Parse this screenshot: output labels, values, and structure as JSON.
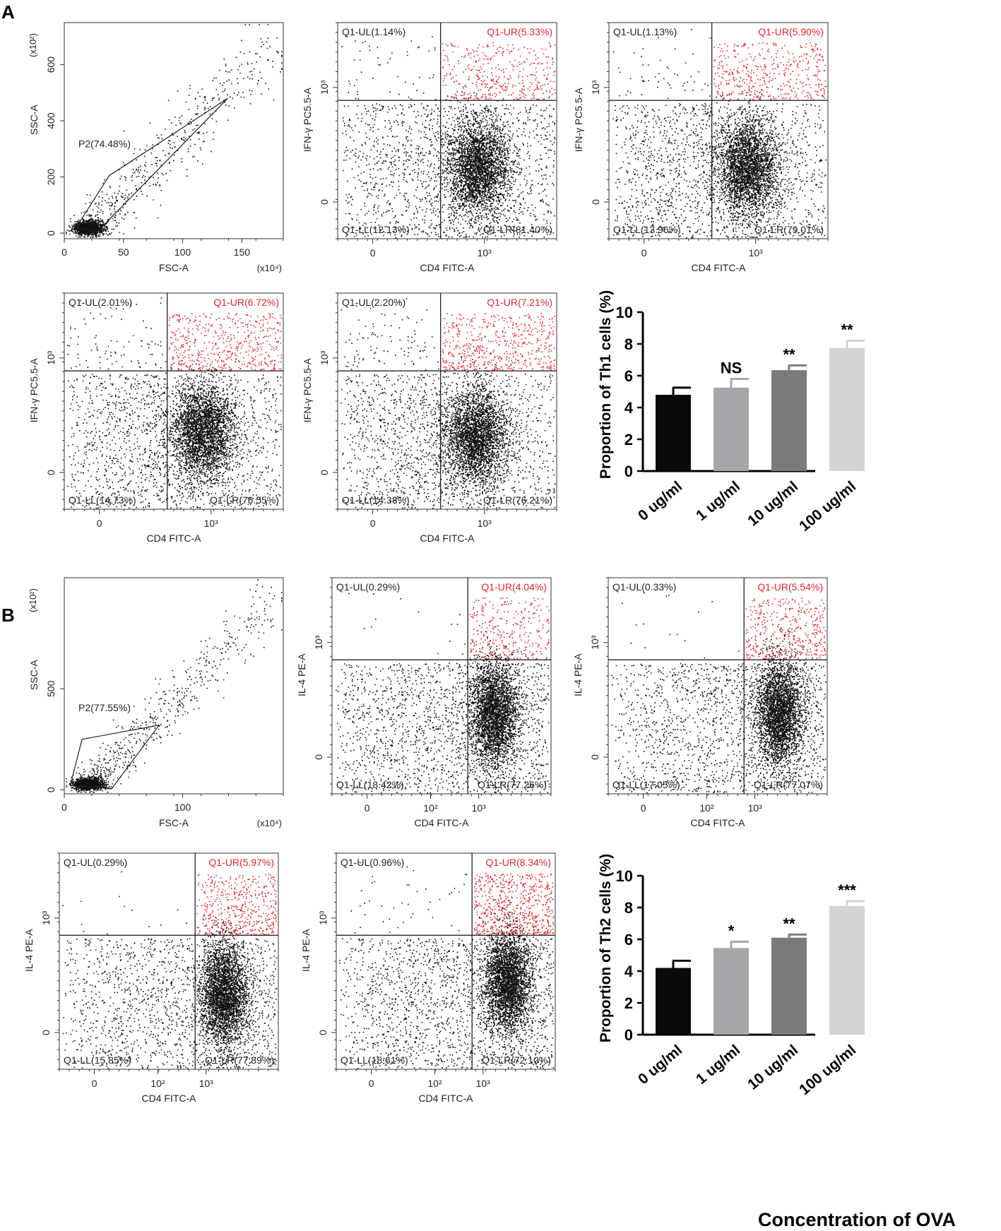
{
  "figure": {
    "panel_labels": [
      "A",
      "B"
    ],
    "common_xlabel": "Concentration of OVA"
  },
  "colors": {
    "black": "#111111",
    "red": "#e3262b",
    "bar0": "#0a0a0a",
    "bar1": "#a6a6aa",
    "bar2": "#7b7b7b",
    "bar3": "#d4d4d4"
  },
  "chart_data": [
    {
      "id": "A-gate",
      "type": "scatter",
      "kind": "gate",
      "xlabel": "FSC-A",
      "ylabel": "SSC-A",
      "x_exponent": "(x10⁴)",
      "y_exponent": "(x10²)",
      "xticks": [
        0,
        50,
        100,
        150
      ],
      "yticks": [
        0,
        200,
        400,
        600
      ],
      "xlim": [
        0,
        185
      ],
      "ylim": [
        -20,
        750
      ],
      "gate_label": "P2(74.48%)",
      "gate_polygon": [
        [
          28,
          5
        ],
        [
          138,
          480
        ],
        [
          38,
          205
        ],
        [
          10,
          20
        ]
      ],
      "cluster": {
        "cx": 20,
        "cy": 20,
        "sx": 6,
        "sy": 12,
        "n": 1400
      },
      "tail": {
        "x0": 20,
        "y0": 20,
        "x1": 180,
        "y1": 680,
        "n": 500
      }
    },
    {
      "id": "A-1",
      "type": "scatter",
      "kind": "quadrant",
      "xlabel": "CD4 FITC-A",
      "ylabel": "IFN-γ PC5.5-A",
      "xticks": [
        {
          "v": 0,
          "t": "0"
        },
        {
          "v": 1000,
          "t": "10³"
        }
      ],
      "yticks": [
        {
          "v": 0,
          "t": "0"
        },
        {
          "v": 1000,
          "t": "10³"
        }
      ],
      "quadrants": {
        "UL": "Q1-UL(1.14%)",
        "UR": "Q1-UR(5.33%)",
        "LL": "Q1-LL(12.13%)",
        "LR": "Q1-LR(81.40%)"
      },
      "values": {
        "UL": 1.14,
        "UR": 5.33,
        "LL": 12.13,
        "LR": 81.4
      },
      "gate": {
        "x": 0.47,
        "y": 0.64
      },
      "cluster": {
        "x": 0.64,
        "y": 0.33,
        "sx": 0.075,
        "sy": 0.115
      }
    },
    {
      "id": "A-2",
      "type": "scatter",
      "kind": "quadrant",
      "xlabel": "CD4 FITC-A",
      "ylabel": "IFN-γ PC5.5-A",
      "xticks": [
        {
          "v": 0,
          "t": "0"
        },
        {
          "v": 1000,
          "t": "10³"
        }
      ],
      "yticks": [
        {
          "v": 0,
          "t": "0"
        },
        {
          "v": 1000,
          "t": "10³"
        }
      ],
      "quadrants": {
        "UL": "Q1-UL(1.13%)",
        "UR": "Q1-UR(5.90%)",
        "LL": "Q1-LL(13.96%)",
        "LR": "Q1-LR(79.01%)"
      },
      "values": {
        "UL": 1.13,
        "UR": 5.9,
        "LL": 13.96,
        "LR": 79.01
      },
      "gate": {
        "x": 0.47,
        "y": 0.64
      },
      "cluster": {
        "x": 0.63,
        "y": 0.33,
        "sx": 0.075,
        "sy": 0.115
      }
    },
    {
      "id": "A-3",
      "type": "scatter",
      "kind": "quadrant",
      "xlabel": "CD4 FITC-A",
      "ylabel": "IFN-γ PC5.5-A",
      "xticks": [
        {
          "v": 0,
          "t": "0"
        },
        {
          "v": 1000,
          "t": "10³"
        }
      ],
      "yticks": [
        {
          "v": 0,
          "t": "0"
        },
        {
          "v": 1000,
          "t": "10³"
        }
      ],
      "quadrants": {
        "UL": "Q1-UL(2.01%)",
        "UR": "Q1-UR(6.72%)",
        "LL": "Q1-LL(14.73%)",
        "LR": "Q1-LR(76.55%)"
      },
      "values": {
        "UL": 2.01,
        "UR": 6.72,
        "LL": 14.73,
        "LR": 76.55
      },
      "gate": {
        "x": 0.47,
        "y": 0.64
      },
      "cluster": {
        "x": 0.63,
        "y": 0.36,
        "sx": 0.075,
        "sy": 0.115
      }
    },
    {
      "id": "A-4",
      "type": "scatter",
      "kind": "quadrant",
      "xlabel": "CD4 FITC-A",
      "ylabel": "IFN-γ PC5.5-A",
      "xticks": [
        {
          "v": 0,
          "t": "0"
        },
        {
          "v": 1000,
          "t": "10³"
        }
      ],
      "yticks": [
        {
          "v": 0,
          "t": "0"
        },
        {
          "v": 1000,
          "t": "10³"
        }
      ],
      "quadrants": {
        "UL": "Q1-UL(2.20%)",
        "UR": "Q1-UR(7.21%)",
        "LL": "Q1-LL(14.38%)",
        "LR": "Q1-LR(76.21%)"
      },
      "values": {
        "UL": 2.2,
        "UR": 7.21,
        "LL": 14.38,
        "LR": 76.21
      },
      "gate": {
        "x": 0.47,
        "y": 0.64
      },
      "cluster": {
        "x": 0.63,
        "y": 0.34,
        "sx": 0.075,
        "sy": 0.115
      }
    },
    {
      "id": "A-bar",
      "type": "bar",
      "ylabel": "Proportion of Th1 cells  (%)",
      "categories": [
        "0 ug/ml",
        "1 ug/ml",
        "10 ug/ml",
        "100 ug/ml"
      ],
      "values": [
        4.8,
        5.25,
        6.35,
        7.75
      ],
      "errors": [
        0.45,
        0.55,
        0.3,
        0.45
      ],
      "significance": [
        "",
        "NS",
        "**",
        "**"
      ],
      "ylim": [
        0,
        10
      ],
      "yticks": [
        0,
        2,
        4,
        6,
        8,
        10
      ]
    },
    {
      "id": "B-gate",
      "type": "scatter",
      "kind": "gate",
      "xlabel": "FSC-A",
      "ylabel": "SSC-A",
      "x_exponent": "(x10⁴)",
      "y_exponent": "(x10²)",
      "xticks": [
        0,
        100
      ],
      "yticks": [
        0,
        500
      ],
      "xlim": [
        0,
        185
      ],
      "ylim": [
        -20,
        1050
      ],
      "gate_label": "P2(77.55%)",
      "gate_polygon": [
        [
          40,
          5
        ],
        [
          80,
          320
        ],
        [
          15,
          250
        ],
        [
          5,
          20
        ]
      ],
      "cluster": {
        "cx": 20,
        "cy": 30,
        "sx": 6,
        "sy": 14,
        "n": 1300
      },
      "tail": {
        "x0": 20,
        "y0": 30,
        "x1": 180,
        "y1": 960,
        "n": 550
      }
    },
    {
      "id": "B-1",
      "type": "scatter",
      "kind": "quadrant",
      "xlabel": "CD4 FITC-A",
      "ylabel": "IL-4 PE-A",
      "xticks": [
        {
          "v": 0,
          "t": "0"
        },
        {
          "v": 100,
          "t": "10²"
        },
        {
          "v": 1000,
          "t": "10³"
        }
      ],
      "yticks": [
        {
          "v": 0,
          "t": "0"
        },
        {
          "v": 1000,
          "t": "10³"
        }
      ],
      "quadrants": {
        "UL": "Q1-UL(0.29%)",
        "UR": "Q1-UR(4.04%)",
        "LL": "Q1-LL(18.42%)",
        "LR": "Q1-LR(77.26%)"
      },
      "values": {
        "UL": 0.29,
        "UR": 4.04,
        "LL": 18.42,
        "LR": 77.26
      },
      "gate": {
        "x": 0.62,
        "y": 0.62
      },
      "cluster": {
        "x": 0.74,
        "y": 0.37,
        "sx": 0.055,
        "sy": 0.12
      }
    },
    {
      "id": "B-2",
      "type": "scatter",
      "kind": "quadrant",
      "xlabel": "CD4 FITC-A",
      "ylabel": "IL-4 PE-A",
      "xticks": [
        {
          "v": 0,
          "t": "0"
        },
        {
          "v": 100,
          "t": "10²"
        },
        {
          "v": 1000,
          "t": "10³"
        }
      ],
      "yticks": [
        {
          "v": 0,
          "t": "0"
        },
        {
          "v": 1000,
          "t": "10³"
        }
      ],
      "quadrants": {
        "UL": "Q1-UL(0.33%)",
        "UR": "Q1-UR(5.54%)",
        "LL": "Q1-LL(17.05%)",
        "LR": "Q1-LR(77.07%)"
      },
      "values": {
        "UL": 0.33,
        "UR": 5.54,
        "LL": 17.05,
        "LR": 77.07
      },
      "gate": {
        "x": 0.62,
        "y": 0.62
      },
      "cluster": {
        "x": 0.78,
        "y": 0.38,
        "sx": 0.055,
        "sy": 0.12
      }
    },
    {
      "id": "B-3",
      "type": "scatter",
      "kind": "quadrant",
      "xlabel": "CD4 FITC-A",
      "ylabel": "IL-4 PE-A",
      "xticks": [
        {
          "v": 0,
          "t": "0"
        },
        {
          "v": 100,
          "t": "10²"
        },
        {
          "v": 1000,
          "t": "10³"
        }
      ],
      "yticks": [
        {
          "v": 0,
          "t": "0"
        },
        {
          "v": 1000,
          "t": "10³"
        }
      ],
      "quadrants": {
        "UL": "Q1-UL(0.29%)",
        "UR": "Q1-UR(5.97%)",
        "LL": "Q1-LL(15.85%)",
        "LR": "Q1-LR(77.89%)"
      },
      "values": {
        "UL": 0.29,
        "UR": 5.97,
        "LL": 15.85,
        "LR": 77.89
      },
      "gate": {
        "x": 0.62,
        "y": 0.62
      },
      "cluster": {
        "x": 0.75,
        "y": 0.35,
        "sx": 0.055,
        "sy": 0.12
      }
    },
    {
      "id": "B-4",
      "type": "scatter",
      "kind": "quadrant",
      "xlabel": "CD4 FITC-A",
      "ylabel": "IL-4 PE-A",
      "xticks": [
        {
          "v": 0,
          "t": "0"
        },
        {
          "v": 100,
          "t": "10²"
        },
        {
          "v": 1000,
          "t": "10³"
        }
      ],
      "yticks": [
        {
          "v": 0,
          "t": "0"
        },
        {
          "v": 1000,
          "t": "10³"
        }
      ],
      "quadrants": {
        "UL": "Q1-UL(0.96%)",
        "UR": "Q1-UR(8.34%)",
        "LL": "Q1-LL(18.61%)",
        "LR": "Q1-LR(72.10%)"
      },
      "values": {
        "UL": 0.96,
        "UR": 8.34,
        "LL": 18.61,
        "LR": 72.1
      },
      "gate": {
        "x": 0.62,
        "y": 0.62
      },
      "cluster": {
        "x": 0.78,
        "y": 0.4,
        "sx": 0.055,
        "sy": 0.12
      }
    },
    {
      "id": "B-bar",
      "type": "bar",
      "ylabel": "Proportion of Th2 cells  (%)",
      "categories": [
        "0 ug/ml",
        "1 ug/ml",
        "10 ug/ml",
        "100 ug/ml"
      ],
      "values": [
        4.2,
        5.45,
        6.1,
        8.1
      ],
      "errors": [
        0.45,
        0.4,
        0.2,
        0.3
      ],
      "significance": [
        "",
        "*",
        "**",
        "***"
      ],
      "ylim": [
        0,
        10
      ],
      "yticks": [
        0,
        2,
        4,
        6,
        8,
        10
      ]
    }
  ]
}
